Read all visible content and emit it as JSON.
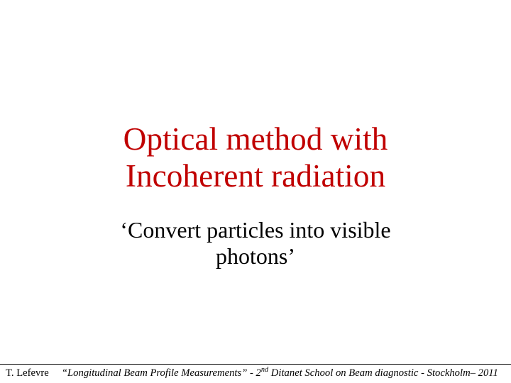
{
  "title": {
    "line1": "Optical method with",
    "line2": "Incoherent radiation",
    "color": "#c00000",
    "font_size_pt": 34,
    "font_family": "Comic Sans MS",
    "font_weight": "normal"
  },
  "subtitle": {
    "line1": "‘Convert particles into visible",
    "line2": "photons’",
    "color": "#000000",
    "font_size_pt": 24,
    "font_family": "Comic Sans MS",
    "font_weight": "normal"
  },
  "footer": {
    "author": "T. Lefevre",
    "text_prefix": "“Longitudinal Beam Profile Measurements” - 2",
    "text_sup": "nd",
    "text_suffix": " Ditanet School on Beam diagnostic - Stockholm– 2011",
    "color": "#000000",
    "font_size_pt": 11,
    "line_color": "#000000"
  },
  "background_color": "#ffffff"
}
